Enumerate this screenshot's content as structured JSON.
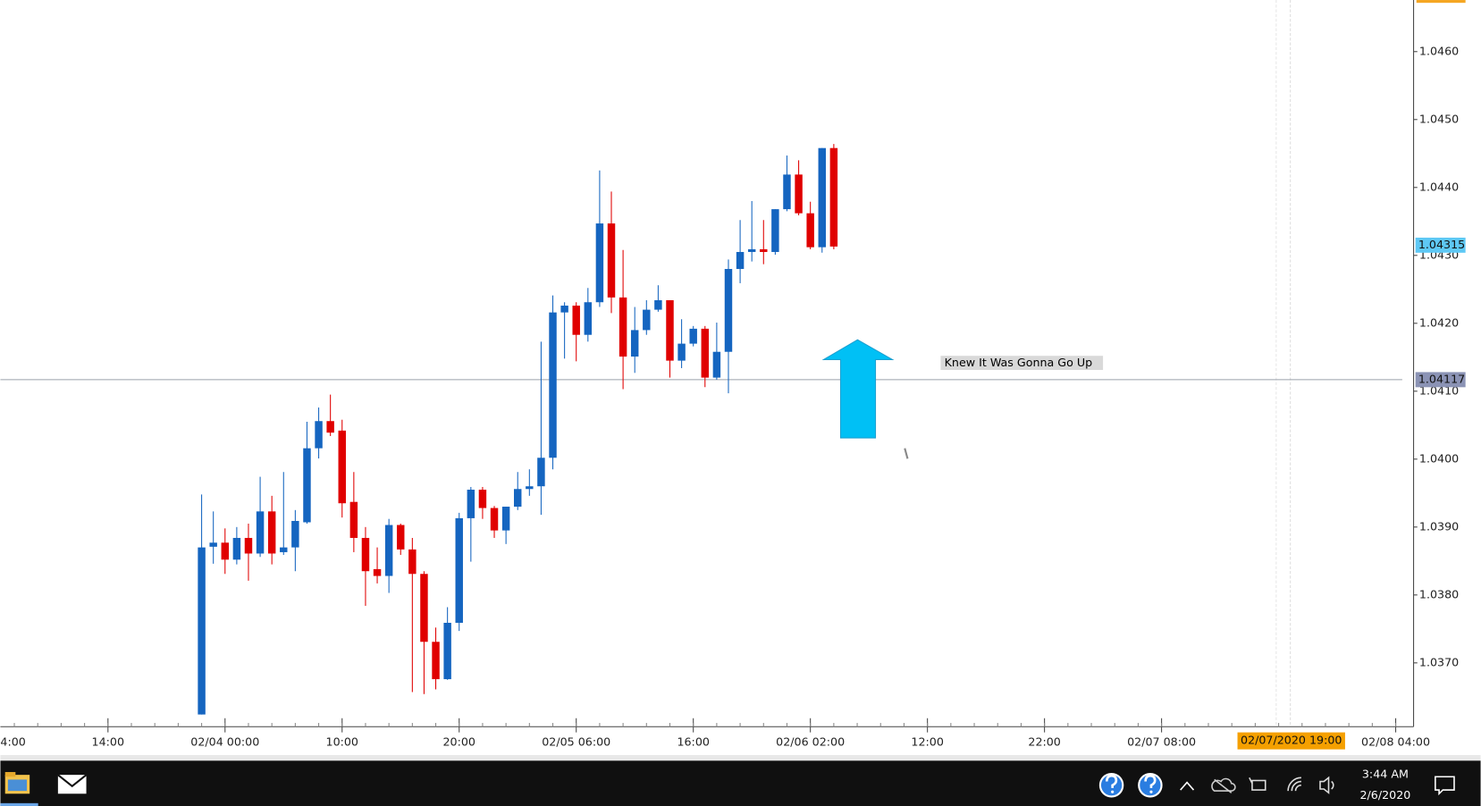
{
  "chart_data": {
    "type": "candlestick",
    "up_color": "#1565c0",
    "down_color": "#e00000",
    "x": [
      -2,
      -1,
      0,
      1,
      2,
      3,
      4,
      5,
      6,
      7,
      8,
      9,
      10,
      11,
      12,
      13,
      14,
      15,
      16,
      17,
      18,
      19,
      20,
      21,
      22,
      23,
      24,
      25,
      26,
      27,
      28,
      29,
      30,
      31,
      32,
      33,
      34,
      35,
      36,
      37,
      38,
      39,
      40,
      41,
      42,
      43,
      44,
      45,
      46,
      47,
      48,
      49,
      50,
      51,
      52
    ],
    "open": [
      1.03624,
      1.03871,
      1.03877,
      1.03852,
      1.03884,
      1.03861,
      1.03923,
      1.03863,
      1.0387,
      1.03907,
      1.04016,
      1.04056,
      1.04042,
      1.03937,
      1.03884,
      1.03838,
      1.03828,
      1.03903,
      1.03867,
      1.03831,
      1.03731,
      1.03676,
      1.03759,
      1.03913,
      1.03955,
      1.03928,
      1.03895,
      1.0393,
      1.03956,
      1.0396,
      1.04002,
      1.04216,
      1.04226,
      1.04183,
      1.04231,
      1.04347,
      1.04238,
      1.04151,
      1.0419,
      1.0422,
      1.04234,
      1.04145,
      1.0417,
      1.04192,
      1.0412,
      1.04158,
      1.0428,
      1.04305,
      1.04309,
      1.04305,
      1.04368,
      1.04419,
      1.04362,
      1.04312,
      1.04458
    ],
    "high": [
      1.03948,
      1.03923,
      1.03898,
      1.039,
      1.03905,
      1.03974,
      1.03946,
      1.03981,
      1.03925,
      1.04055,
      1.04076,
      1.04095,
      1.04058,
      1.03981,
      1.039,
      1.0387,
      1.03912,
      1.03905,
      1.03884,
      1.03835,
      1.03752,
      1.03782,
      1.03921,
      1.03959,
      1.03959,
      1.03931,
      1.0393,
      1.03981,
      1.03985,
      1.04173,
      1.04241,
      1.04231,
      1.04231,
      1.04252,
      1.04425,
      1.04394,
      1.04308,
      1.04224,
      1.04234,
      1.04256,
      1.04234,
      1.04206,
      1.04196,
      1.04196,
      1.04201,
      1.04294,
      1.04352,
      1.0438,
      1.04352,
      1.04368,
      1.04447,
      1.0444,
      1.04379,
      1.04458,
      1.04464
    ],
    "low": [
      1.03624,
      1.03846,
      1.03831,
      1.03845,
      1.03821,
      1.03856,
      1.03845,
      1.03859,
      1.03835,
      1.03905,
      1.04001,
      1.04034,
      1.03914,
      1.03863,
      1.03784,
      1.03817,
      1.03803,
      1.03859,
      1.03657,
      1.03654,
      1.03661,
      1.03675,
      1.03747,
      1.03849,
      1.03912,
      1.03884,
      1.03875,
      1.03925,
      1.03946,
      1.03918,
      1.03985,
      1.04148,
      1.04144,
      1.04173,
      1.04224,
      1.04215,
      1.04103,
      1.04127,
      1.04183,
      1.04217,
      1.0412,
      1.04134,
      1.04166,
      1.04106,
      1.04117,
      1.04097,
      1.04259,
      1.04291,
      1.04287,
      1.04301,
      1.04365,
      1.04359,
      1.04309,
      1.04304,
      1.04309
    ],
    "close": [
      1.0387,
      1.03877,
      1.03852,
      1.03884,
      1.03861,
      1.03923,
      1.03861,
      1.0387,
      1.03909,
      1.04016,
      1.04056,
      1.04039,
      1.03935,
      1.03884,
      1.03835,
      1.03828,
      1.03903,
      1.03867,
      1.03831,
      1.03731,
      1.03676,
      1.03759,
      1.03913,
      1.03955,
      1.03928,
      1.03895,
      1.0393,
      1.03956,
      1.0396,
      1.04002,
      1.04216,
      1.04226,
      1.04183,
      1.04231,
      1.04347,
      1.04238,
      1.04151,
      1.0419,
      1.0422,
      1.04234,
      1.04145,
      1.0417,
      1.04192,
      1.0412,
      1.04158,
      1.0428,
      1.04305,
      1.04309,
      1.04305,
      1.04368,
      1.04419,
      1.04362,
      1.04312,
      1.04458,
      1.04313
    ],
    "xlim": [
      -19.19,
      100.56
    ],
    "xticks": [
      {
        "value": -20,
        "label": "4:00"
      },
      {
        "value": -10,
        "label": "14:00"
      },
      {
        "value": 0,
        "label": "02/04 00:00"
      },
      {
        "value": 10,
        "label": "10:00"
      },
      {
        "value": 20,
        "label": "20:00"
      },
      {
        "value": 30,
        "label": "02/05 06:00"
      },
      {
        "value": 40,
        "label": "16:00"
      },
      {
        "value": 50,
        "label": "02/06 02:00"
      },
      {
        "value": 60,
        "label": "12:00"
      },
      {
        "value": 70,
        "label": "22:00"
      },
      {
        "value": 80,
        "label": "02/07 08:00"
      },
      {
        "value": 100,
        "label": "02/08 04:00"
      }
    ],
    "ylim": [
      1.03606,
      1.04676
    ],
    "yticks": [
      {
        "value": 1.037,
        "label": "1.0370"
      },
      {
        "value": 1.038,
        "label": "1.0380"
      },
      {
        "value": 1.039,
        "label": "1.0390"
      },
      {
        "value": 1.04,
        "label": "1.0400"
      },
      {
        "value": 1.041,
        "label": "1.0410"
      },
      {
        "value": 1.042,
        "label": "1.0420"
      },
      {
        "value": 1.043,
        "label": "1.0430"
      },
      {
        "value": 1.044,
        "label": "1.0440"
      },
      {
        "value": 1.045,
        "label": "1.0450"
      },
      {
        "value": 1.046,
        "label": "1.0460"
      }
    ],
    "last_price": 1.04315,
    "hline": 1.04117,
    "crosshair": {
      "value": 91,
      "label": "02/07/2020 19:00"
    },
    "annotation": "Knew It Was Gonna Go Up"
  },
  "taskbar": {
    "time": "3:44 AM",
    "date": "2/6/2020"
  }
}
